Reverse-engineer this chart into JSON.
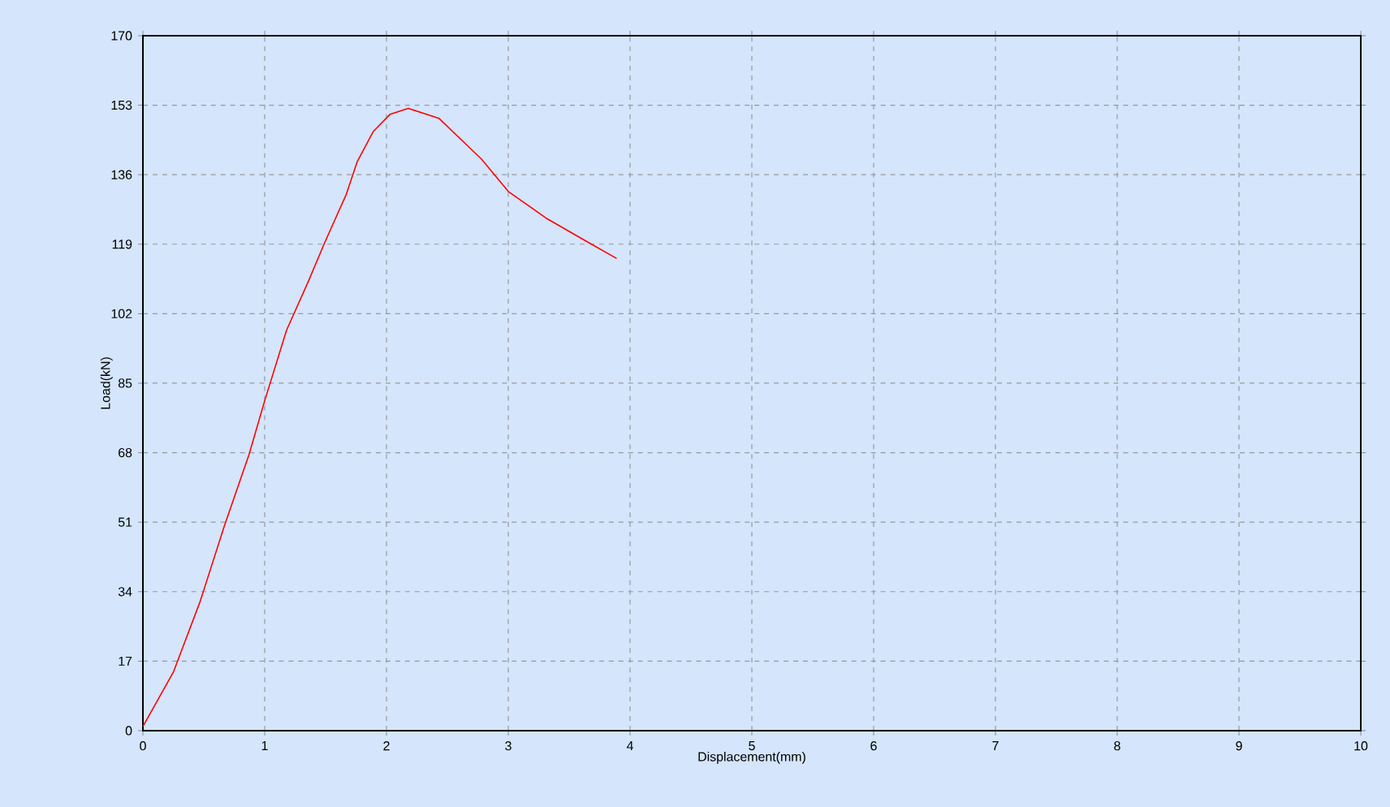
{
  "chart_data": {
    "type": "line",
    "xlabel": "Displacement(mm)",
    "ylabel": "Load(kN)",
    "xlim": [
      0,
      10
    ],
    "xticks": [
      0,
      1,
      2,
      3,
      4,
      5,
      6,
      7,
      8,
      9,
      10
    ],
    "ylim": [
      0,
      170
    ],
    "yticks": [
      0,
      17,
      34,
      51,
      68,
      85,
      102,
      119,
      136,
      153,
      170
    ],
    "grid": true,
    "marker": "none",
    "line_style": "solid",
    "series": [
      {
        "color": "#ff0000",
        "x": [
          0,
          0.25,
          0.47,
          0.67,
          0.87,
          1.0,
          1.18,
          1.36,
          1.49,
          1.67,
          1.76,
          1.89,
          2.03,
          2.18,
          2.43,
          2.78,
          3.0,
          3.32,
          3.63,
          3.89
        ],
        "values": [
          1,
          14.3,
          31.6,
          50.2,
          67.4,
          80.7,
          98,
          110,
          119.2,
          131.2,
          139.2,
          146.5,
          150.8,
          152.2,
          149.8,
          139.8,
          131.9,
          125.2,
          119.9,
          115.5
        ]
      }
    ]
  }
}
